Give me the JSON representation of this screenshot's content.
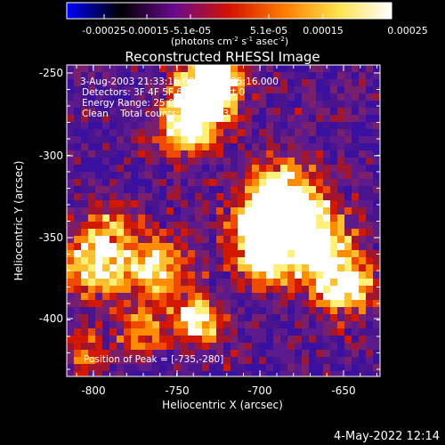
{
  "colorbar": {
    "ticks": [
      "-0.00025",
      "-0.00015",
      "-5.1e-05",
      "5.1e-05",
      "0.00015",
      "0.00025"
    ],
    "units_html": "(photons cm<tspan baseline-shift=\"super\" font-size=\"7\">-2</tspan> s<tspan baseline-shift=\"super\" font-size=\"7\">-1</tspan> asec<tspan baseline-shift=\"super\" font-size=\"7\">-2</tspan>)",
    "colors": [
      "#0000ff",
      "#000000",
      "#6b0a8f",
      "#d31200",
      "#ff7a00",
      "#ffe14a",
      "#ffffff"
    ]
  },
  "image": {
    "title": "Reconstructed RHESSI Image",
    "info_lines": [
      "3-Aug-2003 21:33:16.000 to 21:35:16.000",
      "Detectors: 3F 4F 5F 6F 7F 8F, Att 0",
      "Energy Range: 25.0 - 50.0 keV",
      "Clean    Total counts: 5.18E+03"
    ],
    "peak_label": "Position of Peak = [-735,-280]"
  },
  "axes": {
    "xlabel": "Heliocentric X (arcsec)",
    "ylabel": "Heliocentric Y (arcsec)",
    "xticks": [
      "-800",
      "-750",
      "-700",
      "-650"
    ],
    "yticks": [
      "-250",
      "-300",
      "-350",
      "-400"
    ]
  },
  "footer": {
    "timestamp": "4-May-2022 12:14"
  }
}
